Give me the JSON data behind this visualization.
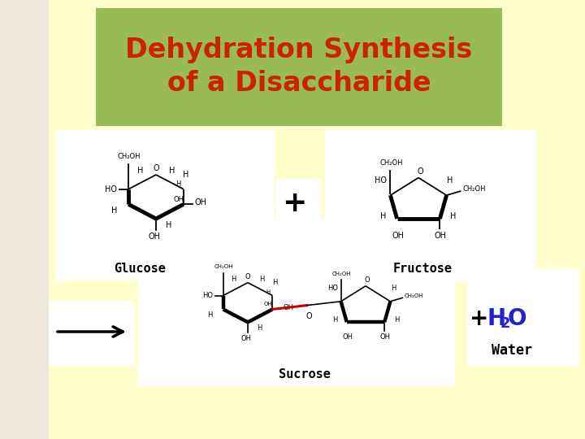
{
  "title_line1": "Dehydration Synthesis",
  "title_line2": "of a Disaccharide",
  "title_color": "#CC2200",
  "title_bg_color": "#99BB55",
  "main_bg_color": "#FFFFCC",
  "outer_bg_left": "#D4B896",
  "label_glucose": "Glucose",
  "label_fructose": "Fructose",
  "label_sucrose": "Sucrose",
  "label_water": "Water",
  "h2o_color": "#2222CC",
  "bond_color_red": "#CC0000",
  "figsize": [
    7.2,
    5.4
  ],
  "dpi": 100
}
